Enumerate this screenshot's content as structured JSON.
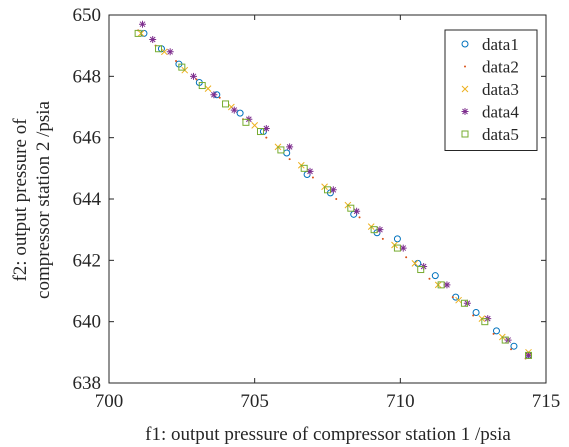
{
  "chart_data": {
    "type": "scatter",
    "xlabel": "f1: output pressure of compressor station 1 /psia",
    "ylabel_lines": [
      "f2: output pressure of",
      "compressor station 2 /psia"
    ],
    "xlim": [
      700,
      715
    ],
    "ylim": [
      638,
      650
    ],
    "xticks": [
      "700",
      "705",
      "710",
      "715"
    ],
    "yticks": [
      "638",
      "640",
      "642",
      "644",
      "646",
      "648",
      "650"
    ],
    "grid": false,
    "legend_placement": "top-right",
    "series": [
      {
        "name": "data1",
        "marker": "circle",
        "color": "#0072BD",
        "points": [
          [
            701.2,
            649.4
          ],
          [
            701.8,
            648.9
          ],
          [
            702.4,
            648.4
          ],
          [
            703.1,
            647.8
          ],
          [
            703.7,
            647.4
          ],
          [
            704.5,
            646.8
          ],
          [
            705.3,
            646.2
          ],
          [
            706.1,
            645.5
          ],
          [
            706.8,
            644.8
          ],
          [
            707.6,
            644.2
          ],
          [
            708.4,
            643.5
          ],
          [
            709.2,
            642.9
          ],
          [
            709.9,
            642.7
          ],
          [
            710.6,
            641.9
          ],
          [
            711.2,
            641.5
          ],
          [
            711.9,
            640.8
          ],
          [
            712.6,
            640.3
          ],
          [
            713.3,
            639.7
          ],
          [
            713.9,
            639.2
          ],
          [
            714.4,
            638.9
          ]
        ]
      },
      {
        "name": "data2",
        "marker": "point",
        "color": "#D95319",
        "points": [
          [
            701.0,
            649.5
          ],
          [
            701.6,
            649.0
          ],
          [
            702.3,
            648.5
          ],
          [
            703.0,
            647.9
          ],
          [
            703.8,
            647.3
          ],
          [
            704.6,
            646.6
          ],
          [
            705.4,
            646.0
          ],
          [
            706.2,
            645.3
          ],
          [
            707.0,
            644.7
          ],
          [
            707.8,
            644.0
          ],
          [
            708.6,
            643.4
          ],
          [
            709.4,
            642.7
          ],
          [
            710.2,
            642.1
          ],
          [
            711.0,
            641.4
          ],
          [
            711.8,
            640.8
          ],
          [
            712.5,
            640.2
          ],
          [
            713.2,
            639.6
          ],
          [
            713.8,
            639.1
          ],
          [
            714.3,
            638.8
          ]
        ]
      },
      {
        "name": "data3",
        "marker": "x",
        "color": "#EDB120",
        "points": [
          [
            701.1,
            649.4
          ],
          [
            701.9,
            648.8
          ],
          [
            702.6,
            648.2
          ],
          [
            703.4,
            647.6
          ],
          [
            704.2,
            647.0
          ],
          [
            705.0,
            646.4
          ],
          [
            705.8,
            645.7
          ],
          [
            706.6,
            645.1
          ],
          [
            707.4,
            644.4
          ],
          [
            708.2,
            643.8
          ],
          [
            709.0,
            643.1
          ],
          [
            709.8,
            642.5
          ],
          [
            710.5,
            641.9
          ],
          [
            711.3,
            641.2
          ],
          [
            712.0,
            640.7
          ],
          [
            712.8,
            640.1
          ],
          [
            713.5,
            639.5
          ],
          [
            714.4,
            639.0
          ]
        ]
      },
      {
        "name": "data4",
        "marker": "asterisk",
        "color": "#7E2F8E",
        "points": [
          [
            701.15,
            649.7
          ],
          [
            701.5,
            649.2
          ],
          [
            702.1,
            648.8
          ],
          [
            702.9,
            648.0
          ],
          [
            703.6,
            647.4
          ],
          [
            704.3,
            646.9
          ],
          [
            704.8,
            646.6
          ],
          [
            705.4,
            646.3
          ],
          [
            706.2,
            645.7
          ],
          [
            706.9,
            644.9
          ],
          [
            707.7,
            644.3
          ],
          [
            708.5,
            643.6
          ],
          [
            709.3,
            643.0
          ],
          [
            710.1,
            642.4
          ],
          [
            710.8,
            641.8
          ],
          [
            711.6,
            641.2
          ],
          [
            712.3,
            640.6
          ],
          [
            713.0,
            640.1
          ],
          [
            713.7,
            639.4
          ],
          [
            714.4,
            638.9
          ]
        ]
      },
      {
        "name": "data5",
        "marker": "square",
        "color": "#77AC30",
        "points": [
          [
            701.0,
            649.4
          ],
          [
            701.7,
            648.9
          ],
          [
            702.5,
            648.3
          ],
          [
            703.2,
            647.7
          ],
          [
            704.0,
            647.1
          ],
          [
            704.7,
            646.5
          ],
          [
            705.2,
            646.2
          ],
          [
            705.9,
            645.6
          ],
          [
            706.7,
            645.0
          ],
          [
            707.5,
            644.3
          ],
          [
            708.3,
            643.7
          ],
          [
            709.1,
            643.0
          ],
          [
            709.9,
            642.4
          ],
          [
            710.7,
            641.7
          ],
          [
            711.4,
            641.2
          ],
          [
            712.2,
            640.6
          ],
          [
            712.9,
            640.0
          ],
          [
            713.6,
            639.4
          ],
          [
            714.4,
            638.9
          ]
        ]
      }
    ]
  }
}
